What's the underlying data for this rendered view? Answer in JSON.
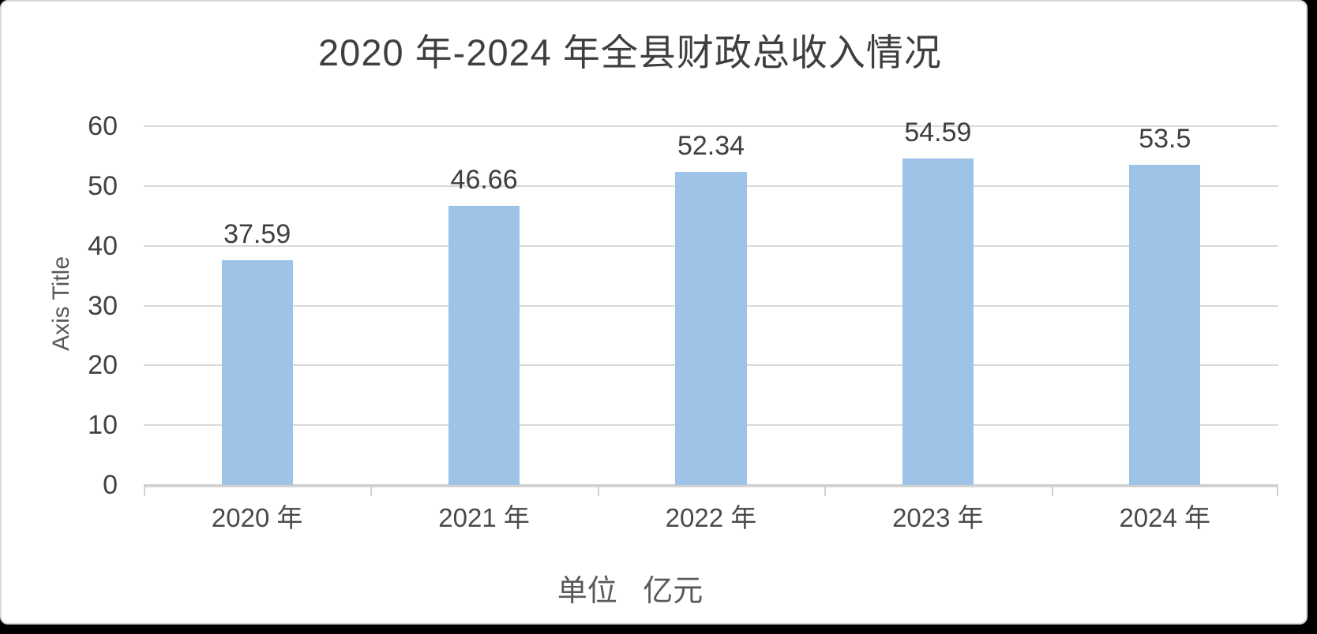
{
  "chart_data": {
    "type": "bar",
    "title": "2020 年-2024 年全县财政总收入情况",
    "ylabel": "Axis Title",
    "note": "单位 亿元",
    "categories": [
      "2020 年",
      "2021 年",
      "2022 年",
      "2023 年",
      "2024 年"
    ],
    "values": [
      37.59,
      46.66,
      52.34,
      54.59,
      53.5
    ],
    "value_labels": [
      "37.59",
      "46.66",
      "52.34",
      "54.59",
      "53.5"
    ],
    "ylim": [
      0,
      60
    ],
    "yticks": [
      0,
      10,
      20,
      30,
      40,
      50,
      60
    ],
    "grid": true,
    "legend": false,
    "bar_color": "#9dc3e6",
    "gridline_color": "#d9d9d9",
    "axis_line_color": "#d2d2d2",
    "title_color": "#3f3f3f",
    "tick_label_color": "#404040",
    "axis_title_color": "#595959"
  }
}
